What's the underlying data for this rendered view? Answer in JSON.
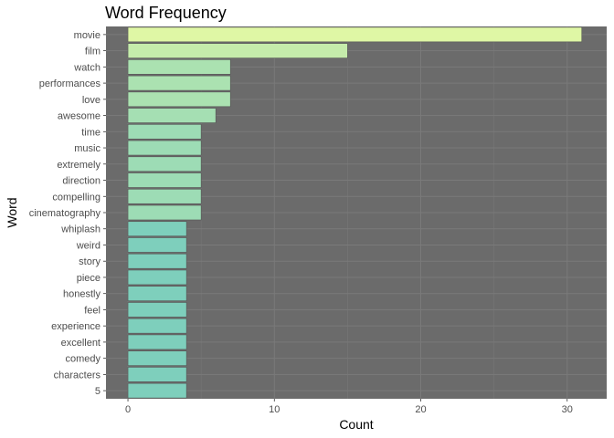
{
  "chart_data": {
    "type": "bar",
    "orientation": "horizontal",
    "title": "Word Frequency",
    "xlabel": "Count",
    "ylabel": "Word",
    "xlim": [
      -1.5,
      32.7
    ],
    "xticks": [
      0,
      10,
      20,
      30
    ],
    "grid": true,
    "legend": "none",
    "panel_background": "#6b6b6b",
    "gridline_color": "#7a7a7a",
    "bar_outline_color": "#555555",
    "color_high": "#dff7a5",
    "color_low": "#7ecfbc",
    "categories": [
      "movie",
      "film",
      "watch",
      "performances",
      "love",
      "awesome",
      "time",
      "music",
      "extremely",
      "direction",
      "compelling",
      "cinematography",
      "whiplash",
      "weird",
      "story",
      "piece",
      "honestly",
      "feel",
      "experience",
      "excellent",
      "comedy",
      "characters",
      "5"
    ],
    "values": [
      31,
      15,
      7,
      7,
      7,
      6,
      5,
      5,
      5,
      5,
      5,
      5,
      4,
      4,
      4,
      4,
      4,
      4,
      4,
      4,
      4,
      4,
      4
    ]
  }
}
